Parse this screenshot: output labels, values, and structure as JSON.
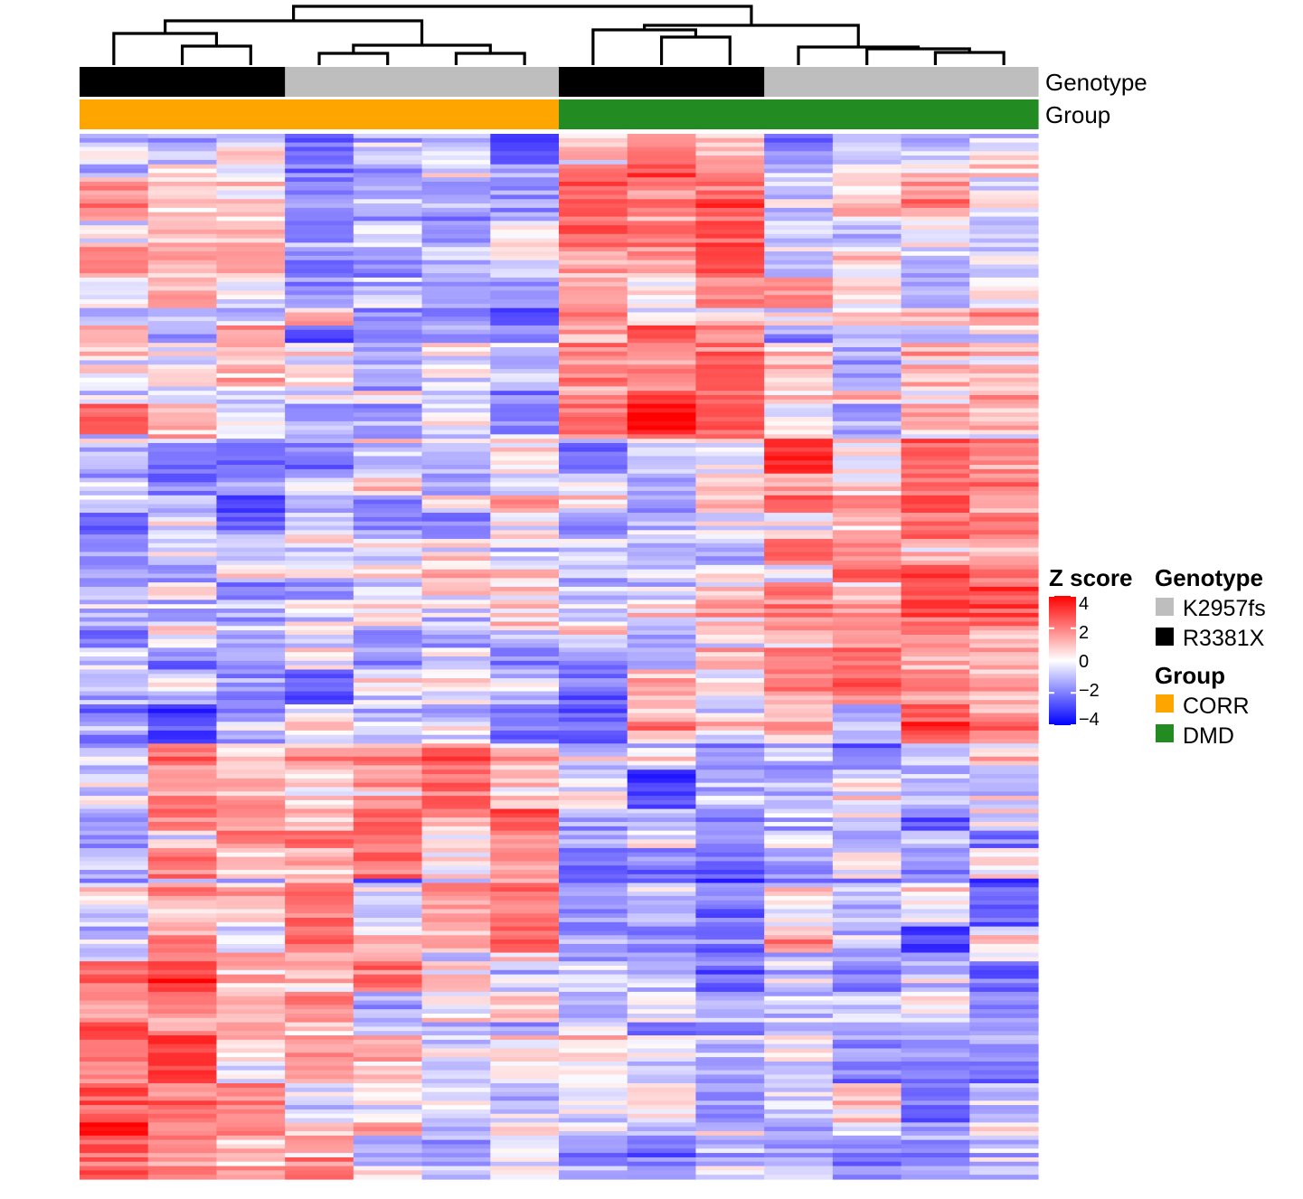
{
  "chart_data": {
    "type": "heatmap",
    "title": "",
    "row_count": 240,
    "annotation_tracks": [
      {
        "name": "Genotype",
        "values": [
          "R3381X",
          "R3381X",
          "R3381X",
          "K2957fs",
          "K2957fs",
          "K2957fs",
          "K2957fs",
          "R3381X",
          "R3381X",
          "R3381X",
          "K2957fs",
          "K2957fs",
          "K2957fs",
          "K2957fs"
        ]
      },
      {
        "name": "Group",
        "values": [
          "CORR",
          "CORR",
          "CORR",
          "CORR",
          "CORR",
          "CORR",
          "CORR",
          "DMD",
          "DMD",
          "DMD",
          "DMD",
          "DMD",
          "DMD",
          "DMD"
        ]
      }
    ],
    "legends": {
      "zscore": {
        "title": "Z score",
        "ticks": [
          4,
          2,
          0,
          -2,
          -4
        ],
        "tick_labels": [
          "4",
          "2",
          "0",
          "−2",
          "−4"
        ],
        "range": [
          -4,
          4
        ],
        "low_color": "#0000ff",
        "mid_color": "#ffffff",
        "high_color": "#ff0000"
      },
      "genotype": {
        "title": "Genotype",
        "items": [
          {
            "label": "K2957fs",
            "color": "#bebebe"
          },
          {
            "label": "R3381X",
            "color": "#000000"
          }
        ]
      },
      "group": {
        "title": "Group",
        "items": [
          {
            "label": "CORR",
            "color": "#ffa500"
          },
          {
            "label": "DMD",
            "color": "#228b22"
          }
        ]
      }
    },
    "row_blocks": [
      {
        "rows": 70,
        "mean_z": [
          0.3,
          0.0,
          0.4,
          -0.9,
          -1.0,
          -0.8,
          -0.9,
          1.6,
          2.0,
          2.0,
          0.0,
          0.1,
          0.2,
          0.3
        ]
      },
      {
        "rows": 70,
        "mean_z": [
          -1.0,
          -1.1,
          -0.9,
          -0.6,
          -0.5,
          -0.6,
          -0.6,
          -0.7,
          -0.5,
          0.3,
          1.2,
          1.1,
          1.4,
          1.5
        ]
      },
      {
        "rows": 50,
        "mean_z": [
          -0.3,
          0.8,
          0.5,
          1.0,
          1.0,
          0.9,
          1.0,
          -1.0,
          -1.4,
          -1.5,
          -0.4,
          -0.6,
          -0.7,
          -0.8
        ]
      },
      {
        "rows": 50,
        "mean_z": [
          2.0,
          1.6,
          1.2,
          0.4,
          0.1,
          0.0,
          -0.1,
          -0.3,
          -0.6,
          -0.8,
          -0.9,
          -1.0,
          -1.0,
          -1.1
        ]
      }
    ]
  }
}
